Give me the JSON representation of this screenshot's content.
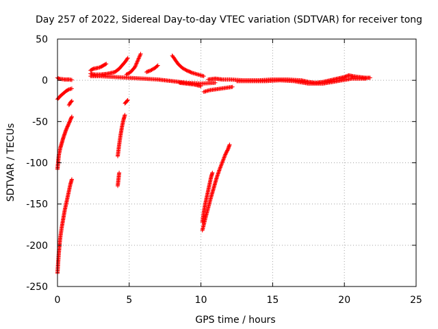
{
  "chart_data": {
    "type": "scatter",
    "title": "Day 257 of 2022, Sidereal Day-to-day VTEC variation (SDTVAR) for receiver tong",
    "xlabel": "GPS time / hours",
    "ylabel": "SDTVAR / TECUs",
    "xlim": [
      0,
      25
    ],
    "ylim": [
      -250,
      50
    ],
    "xticks": [
      0,
      5,
      10,
      15,
      20,
      25
    ],
    "yticks": [
      -250,
      -200,
      -150,
      -100,
      -50,
      0,
      50
    ],
    "grid": true,
    "marker": "+",
    "marker_color": "#ff0000",
    "series": [
      {
        "points_style": "arcs",
        "segments": [
          {
            "x": [
              0.0,
              0.1,
              0.3,
              0.5,
              0.8,
              1.0
            ],
            "y": [
              3,
              2,
              1.5,
              1,
              1,
              0.5
            ]
          },
          {
            "x": [
              0.0,
              0.2,
              0.4,
              0.6,
              0.8,
              1.0
            ],
            "y": [
              -23,
              -19,
              -16,
              -13,
              -11,
              -10
            ]
          },
          {
            "x": [
              0.8,
              0.9,
              1.0
            ],
            "y": [
              -30,
              -27,
              -25
            ]
          },
          {
            "x": [
              0.0,
              0.05,
              0.1,
              0.2,
              0.3,
              0.4,
              0.5,
              0.6,
              0.7,
              0.8,
              0.9,
              1.0
            ],
            "y": [
              -108,
              -98,
              -90,
              -82,
              -76,
              -70,
              -65,
              -60,
              -56,
              -52,
              -48,
              -44
            ]
          },
          {
            "x": [
              0.0,
              0.05,
              0.1,
              0.15,
              0.2,
              0.3,
              0.4,
              0.5,
              0.6,
              0.7,
              0.8,
              0.9,
              1.0
            ],
            "y": [
              -234,
              -220,
              -208,
              -198,
              -190,
              -178,
              -168,
              -158,
              -150,
              -142,
              -134,
              -126,
              -120
            ]
          },
          {
            "x": [
              4.2,
              4.3,
              4.4,
              4.5,
              4.6,
              4.7
            ],
            "y": [
              -92,
              -78,
              -66,
              -56,
              -48,
              -42
            ]
          },
          {
            "x": [
              4.2,
              4.25,
              4.3
            ],
            "y": [
              -128,
              -120,
              -112
            ]
          },
          {
            "x": [
              4.7,
              4.8,
              4.9
            ],
            "y": [
              -28,
              -26,
              -24
            ]
          },
          {
            "x": [
              10.1,
              10.3,
              10.5,
              10.7,
              10.9,
              11.1,
              11.3,
              11.5,
              11.7,
              11.9,
              12.0
            ],
            "y": [
              -182,
              -168,
              -155,
              -142,
              -130,
              -118,
              -108,
              -99,
              -90,
              -83,
              -78
            ]
          },
          {
            "x": [
              10.1,
              10.2,
              10.3,
              10.4,
              10.5,
              10.6,
              10.7,
              10.8
            ],
            "y": [
              -172,
              -160,
              -150,
              -142,
              -134,
              -126,
              -118,
              -112
            ]
          },
          {
            "x": [
              2.3,
              2.5,
              2.8,
              3.0,
              3.2,
              3.4
            ],
            "y": [
              12,
              14,
              15,
              16,
              18,
              20
            ]
          },
          {
            "x": [
              2.3,
              2.6,
              3.0,
              3.5,
              4.0,
              4.3,
              4.5,
              4.7,
              4.9
            ],
            "y": [
              8,
              7,
              7,
              8,
              10,
              14,
              18,
              22,
              27
            ]
          },
          {
            "x": [
              4.8,
              5.1,
              5.4,
              5.6,
              5.8
            ],
            "y": [
              7,
              10,
              16,
              24,
              32
            ]
          },
          {
            "x": [
              6.2,
              6.5,
              6.8,
              7.0
            ],
            "y": [
              10,
              12,
              15,
              18
            ]
          },
          {
            "x": [
              8.0,
              8.2,
              8.4,
              8.7,
              9.0,
              9.4,
              9.8,
              10.2
            ],
            "y": [
              30,
              25,
              20,
              15,
              12,
              9,
              7,
              5
            ]
          },
          {
            "x": [
              2.3,
              3.0,
              4.0,
              5.0,
              6.0,
              7.0,
              8.0,
              9.0,
              10.0,
              11.0
            ],
            "y": [
              5,
              5,
              4,
              3,
              2,
              1,
              -1,
              -3,
              -4,
              -3
            ]
          },
          {
            "x": [
              8.5,
              9.0,
              9.5,
              10.0
            ],
            "y": [
              -3,
              -4,
              -5,
              -7
            ]
          },
          {
            "x": [
              10.2,
              10.6,
              11.0,
              11.4,
              11.8,
              12.2
            ],
            "y": [
              -14,
              -12,
              -11,
              -10,
              -9,
              -8
            ]
          },
          {
            "x": [
              10.5,
              11.0,
              11.5,
              12.0,
              13.0,
              14.0,
              15.0,
              16.0,
              17.0,
              17.5,
              18.0,
              18.5,
              19.0,
              19.5,
              20.0,
              20.3,
              20.6,
              21.0,
              21.5,
              21.8
            ],
            "y": [
              1,
              2,
              1,
              1,
              0,
              0,
              1,
              1,
              0,
              -2,
              -3,
              -2,
              0,
              2,
              4,
              6,
              5,
              4,
              3,
              3
            ]
          },
          {
            "x": [
              12.5,
              13.5,
              14.5,
              15.5,
              16.5,
              17.5,
              18.5,
              19.5,
              20.5,
              21.5
            ],
            "y": [
              -1,
              -1,
              -1,
              0,
              -1,
              -4,
              -4,
              -1,
              2,
              2
            ]
          }
        ]
      }
    ]
  }
}
